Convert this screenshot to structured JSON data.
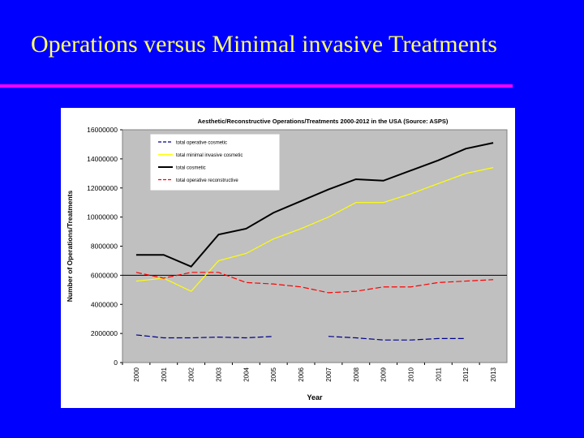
{
  "slide": {
    "title": "Operations versus Minimal invasive Treatments"
  },
  "colors": {
    "background": "#0000ff",
    "title_text": "#ffff66",
    "rule": "#ff00ff",
    "plot_area": "#c0c0c0"
  },
  "chart_data": {
    "type": "line",
    "title": "Aesthetic/Reconstructive Operations/Treatments 2000-2012 in the USA (Source: ASPS)",
    "xlabel": "Year",
    "ylabel": "Number of Operations/Treatments",
    "x": [
      "2000",
      "2001",
      "2002",
      "2003",
      "2004",
      "2005",
      "2006",
      "2007",
      "2008",
      "2009",
      "2010",
      "2011",
      "2012",
      "2013"
    ],
    "ylim": [
      0,
      16000000
    ],
    "yticks": [
      "0",
      "2000000",
      "4000000",
      "6000000",
      "8000000",
      "10000000",
      "12000000",
      "14000000",
      "16000000"
    ],
    "grid": false,
    "legend_position": "top-left",
    "series": [
      {
        "name": "total operative cosmetic",
        "color": "#00008b",
        "dash": "dashed",
        "values": [
          1900000,
          1700000,
          1700000,
          1750000,
          1700000,
          1800000,
          null,
          1800000,
          1700000,
          1550000,
          1550000,
          1650000,
          1650000,
          null
        ]
      },
      {
        "name": "total minimal invasive cosmetic",
        "color": "#ffff00",
        "dash": "solid",
        "values": [
          5600000,
          5800000,
          4900000,
          7000000,
          7500000,
          8500000,
          9200000,
          10000000,
          11000000,
          11000000,
          11600000,
          12300000,
          13000000,
          13400000
        ]
      },
      {
        "name": "total cosmetic",
        "color": "#000000",
        "dash": "solid",
        "values": [
          7400000,
          7400000,
          6600000,
          8800000,
          9200000,
          10300000,
          11100000,
          11900000,
          12600000,
          12500000,
          13200000,
          13900000,
          14700000,
          15100000
        ]
      },
      {
        "name": "total operative reconstructive",
        "color": "#ff0000",
        "dash": "dashed",
        "values": [
          6200000,
          5800000,
          6200000,
          6200000,
          5500000,
          5400000,
          5200000,
          4800000,
          4900000,
          5200000,
          5200000,
          5500000,
          5600000,
          5700000
        ]
      }
    ]
  }
}
